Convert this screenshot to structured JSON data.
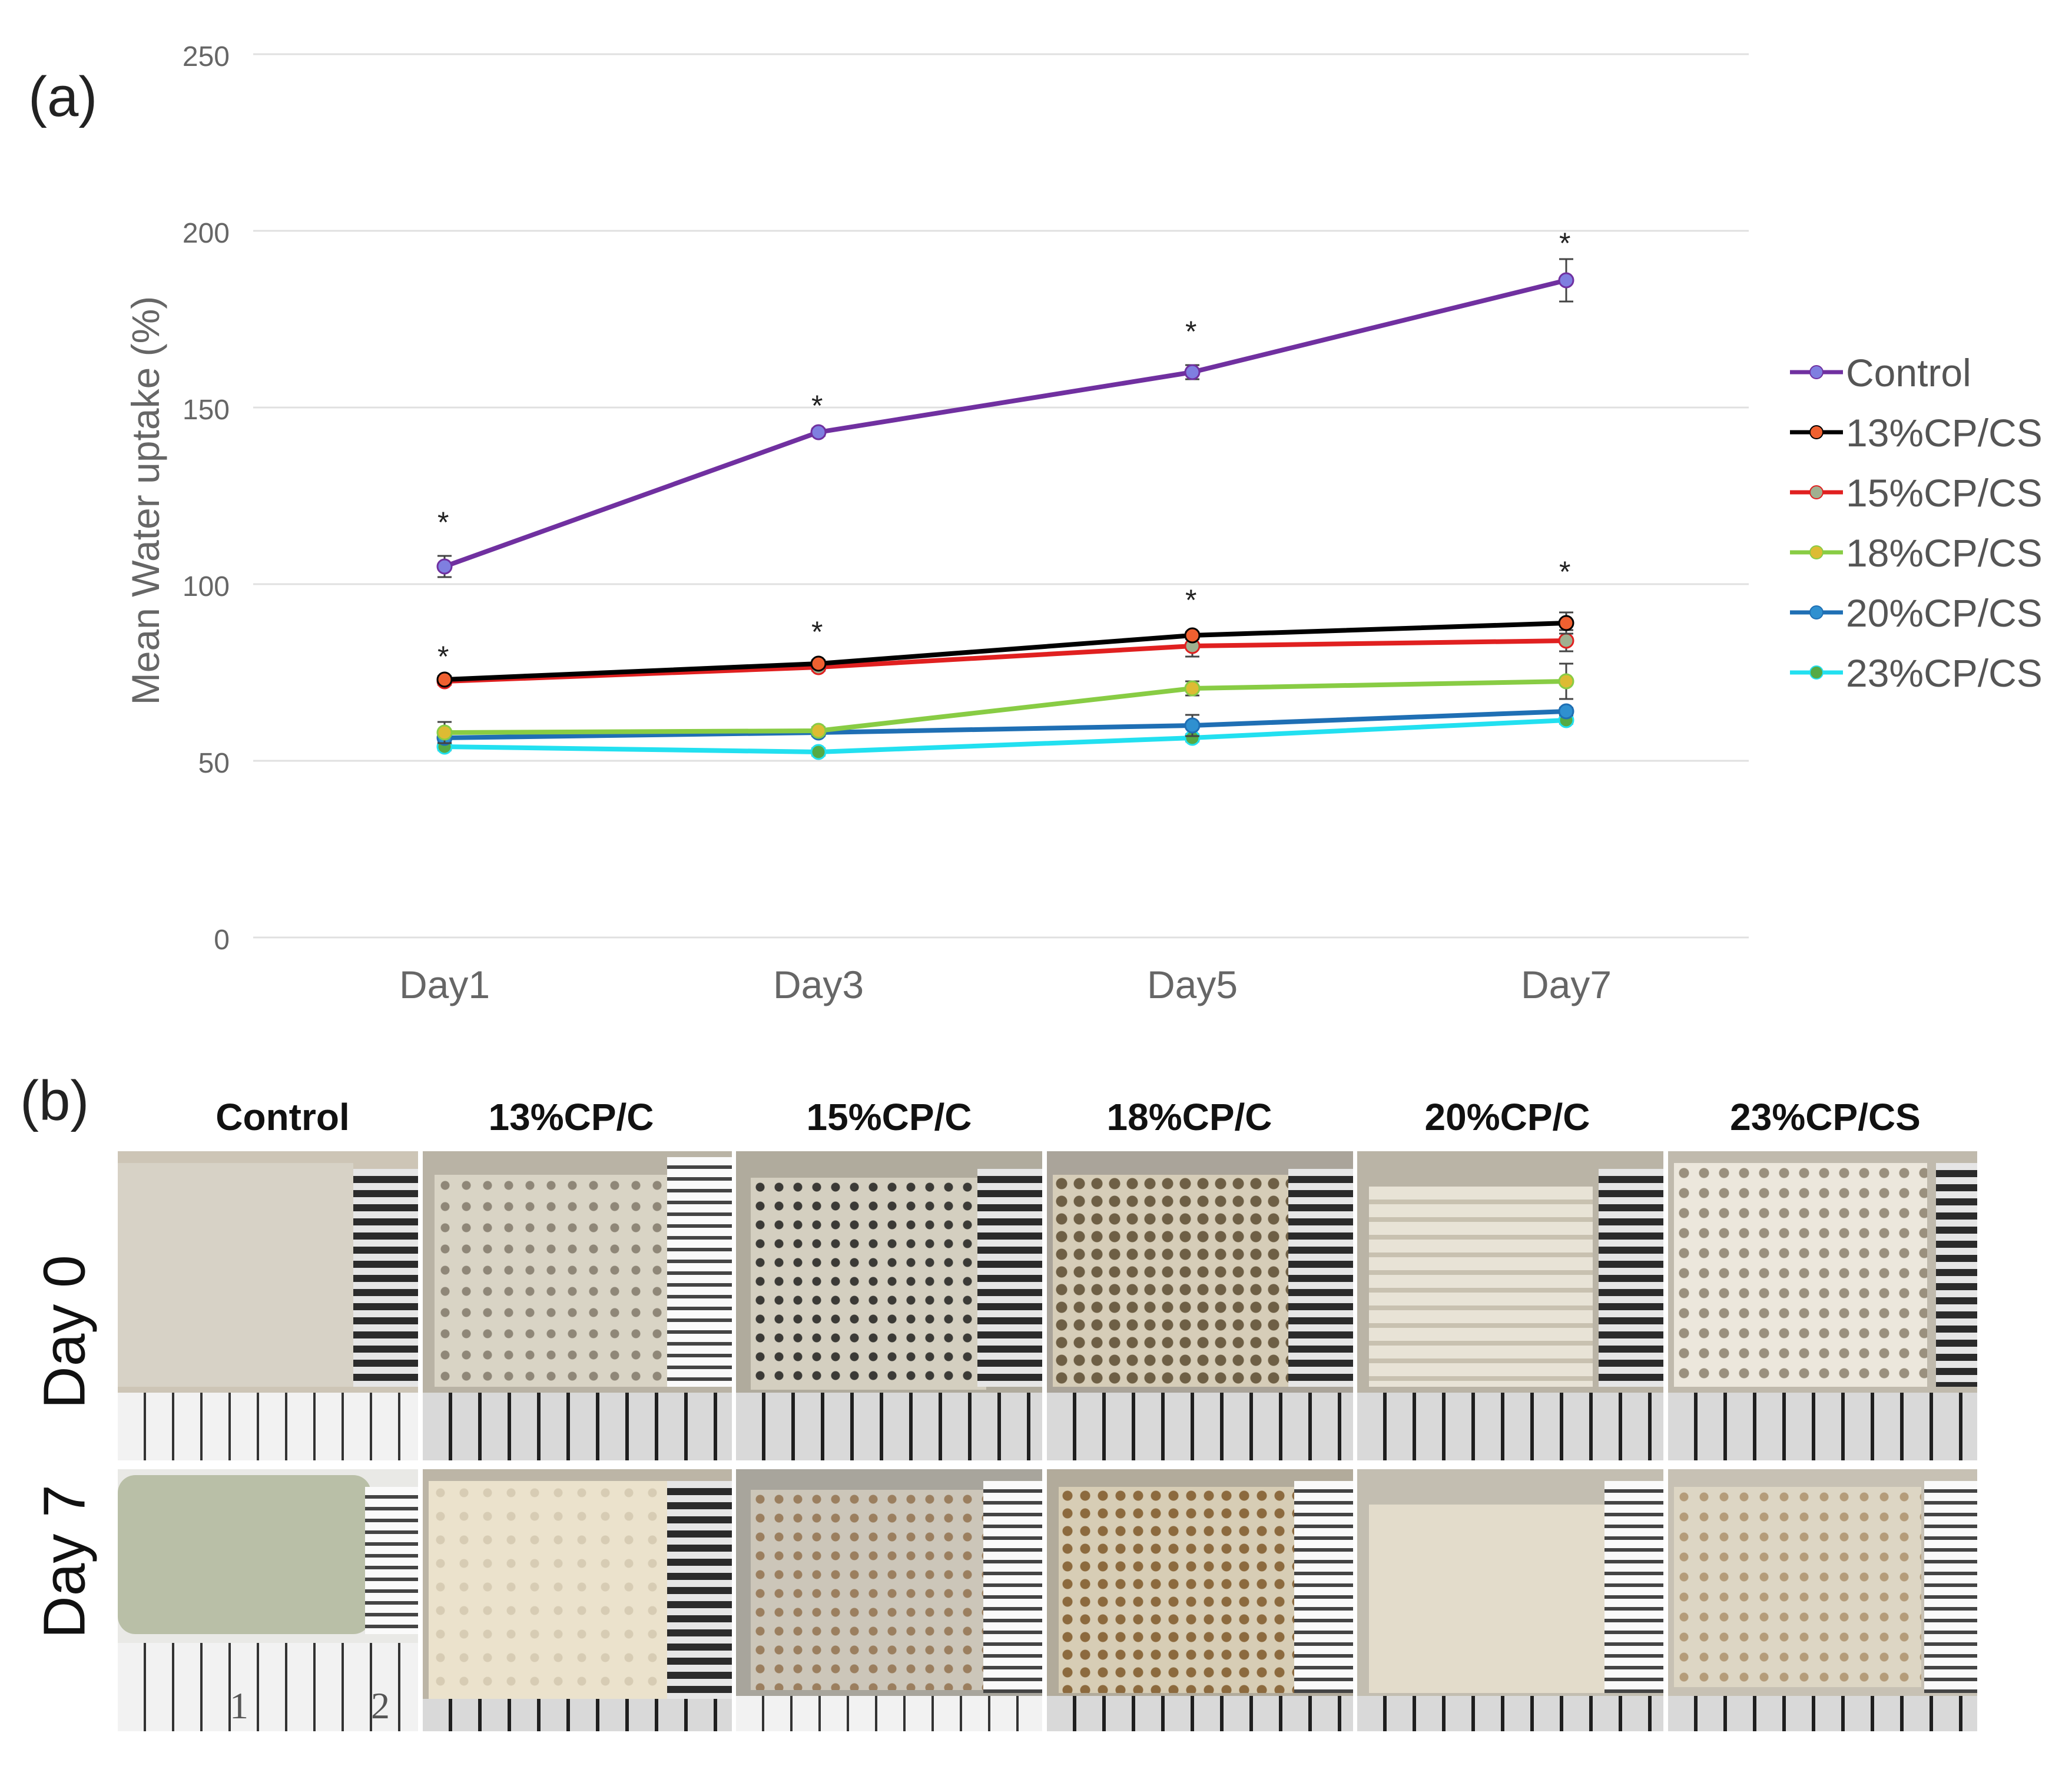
{
  "panel_a_label": "(a)",
  "panel_b_label": "(b)",
  "chart_data": {
    "type": "line",
    "title": "",
    "xlabel": "",
    "ylabel": "Mean Water uptake (%)",
    "categories": [
      "Day1",
      "Day3",
      "Day5",
      "Day7"
    ],
    "ylim": [
      0,
      250
    ],
    "yticks": [
      "0",
      "50",
      "100",
      "150",
      "200",
      "250"
    ],
    "grid": true,
    "legend_position": "right",
    "series": [
      {
        "name": "Control",
        "color": "#7030a0",
        "marker": "#7f7fe0",
        "values": [
          105,
          143,
          160,
          186
        ],
        "errors": [
          3,
          1,
          2,
          6
        ]
      },
      {
        "name": "13%CP/CS",
        "color": "#000000",
        "marker": "#f06030",
        "values": [
          73,
          77.5,
          85.5,
          89
        ],
        "errors": [
          1,
          1,
          1,
          3
        ]
      },
      {
        "name": "15%CP/CS",
        "color": "#e02020",
        "marker": "#a0b090",
        "values": [
          72.5,
          76.5,
          82.5,
          84
        ],
        "errors": [
          1,
          1,
          3,
          3
        ]
      },
      {
        "name": "18%CP/CS",
        "color": "#88cc44",
        "marker": "#ddbb33",
        "values": [
          58,
          58.5,
          70.5,
          72.5
        ],
        "errors": [
          3,
          1,
          2,
          5
        ]
      },
      {
        "name": "20%CP/CS",
        "color": "#1f6fb4",
        "marker": "#2f90d0",
        "values": [
          56.5,
          58,
          60,
          64
        ],
        "errors": [
          1,
          1,
          3,
          1
        ]
      },
      {
        "name": "23%CP/CS",
        "color": "#22e0f0",
        "marker": "#55aa44",
        "values": [
          54,
          52.5,
          56.5,
          61.5
        ],
        "errors": [
          1,
          1,
          1,
          1
        ]
      }
    ],
    "annotations": [
      {
        "text": "*",
        "category": "Day1",
        "y": 118
      },
      {
        "text": "*",
        "category": "Day3",
        "y": 151
      },
      {
        "text": "*",
        "category": "Day5",
        "y": 172
      },
      {
        "text": "*",
        "category": "Day7",
        "y": 197
      },
      {
        "text": "*",
        "category": "Day1",
        "y": 80
      },
      {
        "text": "*",
        "category": "Day3",
        "y": 87
      },
      {
        "text": "*",
        "category": "Day5",
        "y": 96
      },
      {
        "text": "*",
        "category": "Day7",
        "y": 104
      }
    ]
  },
  "panel_b": {
    "columns": [
      "Control",
      "13%CP/C",
      "15%CP/C",
      "18%CP/C",
      "20%CP/C",
      "23%CP/CS"
    ],
    "rows": [
      "Day 0",
      "Day 7"
    ],
    "ruler_numbers": [
      "1",
      "2"
    ]
  }
}
